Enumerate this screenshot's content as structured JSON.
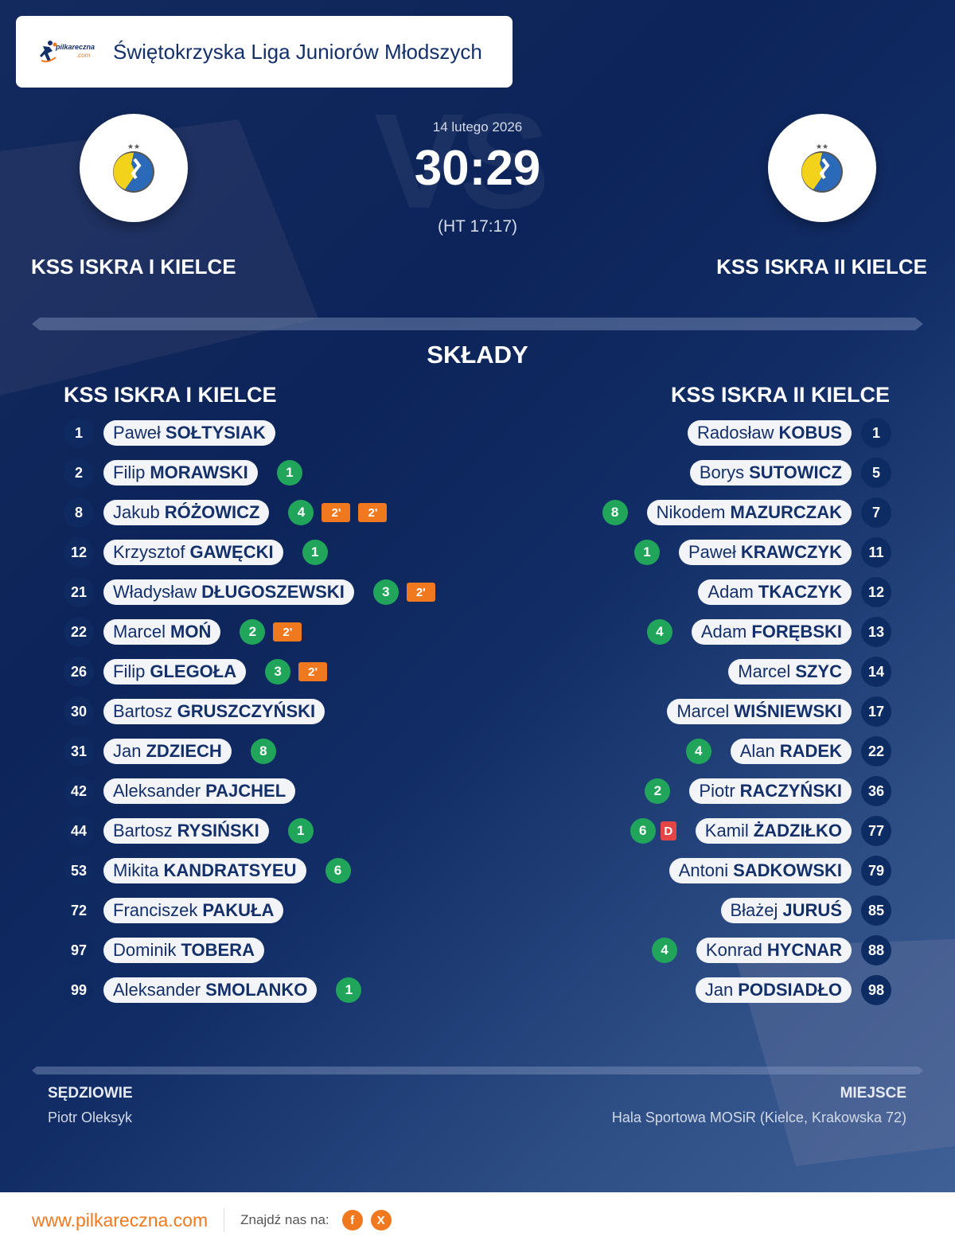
{
  "header": {
    "brand_name": "pilkareczna",
    "brand_suffix": ".com",
    "league_title": "Świętokrzyska Liga Juniorów Młodszych"
  },
  "match": {
    "date": "14 lutego 2026",
    "score": "30:29",
    "half_time": "(HT 17:17)",
    "vs_watermark": "VS",
    "home_team": "KSS ISKRA I KIELCE",
    "away_team": "KSS ISKRA II KIELCE"
  },
  "lineups": {
    "title": "SKŁADY",
    "home_team": "KSS ISKRA I KIELCE",
    "away_team": "KSS ISKRA II KIELCE",
    "home": [
      {
        "number": "1",
        "first": "Paweł",
        "last": "SOŁTYSIAK",
        "goals": null,
        "penalties": []
      },
      {
        "number": "2",
        "first": "Filip",
        "last": "MORAWSKI",
        "goals": "1",
        "penalties": []
      },
      {
        "number": "8",
        "first": "Jakub",
        "last": "RÓŻOWICZ",
        "goals": "4",
        "penalties": [
          "2'",
          "2'"
        ]
      },
      {
        "number": "12",
        "first": "Krzysztof",
        "last": "GAWĘCKI",
        "goals": "1",
        "penalties": []
      },
      {
        "number": "21",
        "first": "Władysław",
        "last": "DŁUGOSZEWSKI",
        "goals": "3",
        "penalties": [
          "2'"
        ]
      },
      {
        "number": "22",
        "first": "Marcel",
        "last": "MOŃ",
        "goals": "2",
        "penalties": [
          "2'"
        ]
      },
      {
        "number": "26",
        "first": "Filip",
        "last": "GLEGOŁA",
        "goals": "3",
        "penalties": [
          "2'"
        ]
      },
      {
        "number": "30",
        "first": "Bartosz",
        "last": "GRUSZCZYŃSKI",
        "goals": null,
        "penalties": []
      },
      {
        "number": "31",
        "first": "Jan",
        "last": "ZDZIECH",
        "goals": "8",
        "penalties": []
      },
      {
        "number": "42",
        "first": "Aleksander",
        "last": "PAJCHEL",
        "goals": null,
        "penalties": []
      },
      {
        "number": "44",
        "first": "Bartosz",
        "last": "RYSIŃSKI",
        "goals": "1",
        "penalties": []
      },
      {
        "number": "53",
        "first": "Mikita",
        "last": "KANDRATSYEU",
        "goals": "6",
        "penalties": []
      },
      {
        "number": "72",
        "first": "Franciszek",
        "last": "PAKUŁA",
        "goals": null,
        "penalties": []
      },
      {
        "number": "97",
        "first": "Dominik",
        "last": "TOBERA",
        "goals": null,
        "penalties": []
      },
      {
        "number": "99",
        "first": "Aleksander",
        "last": "SMOLANKO",
        "goals": "1",
        "penalties": []
      }
    ],
    "away": [
      {
        "number": "1",
        "first": "Radosław",
        "last": "KOBUS",
        "goals": null,
        "penalties": []
      },
      {
        "number": "5",
        "first": "Borys",
        "last": "SUTOWICZ",
        "goals": null,
        "penalties": []
      },
      {
        "number": "7",
        "first": "Nikodem",
        "last": "MAZURCZAK",
        "goals": "8",
        "penalties": []
      },
      {
        "number": "11",
        "first": "Paweł",
        "last": "KRAWCZYK",
        "goals": "1",
        "penalties": []
      },
      {
        "number": "12",
        "first": "Adam",
        "last": "TKACZYK",
        "goals": null,
        "penalties": []
      },
      {
        "number": "13",
        "first": "Adam",
        "last": "FORĘBSKI",
        "goals": "4",
        "penalties": []
      },
      {
        "number": "14",
        "first": "Marcel",
        "last": "SZYC",
        "goals": null,
        "penalties": []
      },
      {
        "number": "17",
        "first": "Marcel",
        "last": "WIŚNIEWSKI",
        "goals": null,
        "penalties": []
      },
      {
        "number": "22",
        "first": "Alan",
        "last": "RADEK",
        "goals": "4",
        "penalties": []
      },
      {
        "number": "36",
        "first": "Piotr",
        "last": "RACZYŃSKI",
        "goals": "2",
        "penalties": []
      },
      {
        "number": "77",
        "first": "Kamil",
        "last": "ŻADZIŁKO",
        "goals": "6",
        "penalties": [
          "D"
        ]
      },
      {
        "number": "79",
        "first": "Antoni",
        "last": "SADKOWSKI",
        "goals": null,
        "penalties": []
      },
      {
        "number": "85",
        "first": "Błażej",
        "last": "JURUŚ",
        "goals": null,
        "penalties": []
      },
      {
        "number": "88",
        "first": "Konrad",
        "last": "HYCNAR",
        "goals": "4",
        "penalties": []
      },
      {
        "number": "98",
        "first": "Jan",
        "last": "PODSIADŁO",
        "goals": null,
        "penalties": []
      }
    ]
  },
  "info": {
    "referees_label": "SĘDZIOWIE",
    "referees_value": "Piotr Oleksyk",
    "venue_label": "MIEJSCE",
    "venue_value": "Hala Sportowa MOSiR (Kielce, Krakowska 72)"
  },
  "footer": {
    "website": "www.pilkareczna.com",
    "find_us": "Znajdź nas na:",
    "social": [
      {
        "icon": "facebook-icon",
        "glyph": "f"
      },
      {
        "icon": "x-icon",
        "glyph": "X"
      }
    ]
  },
  "colors": {
    "navy": "#0c2459",
    "goal_green": "#21a55a",
    "penalty_orange": "#f07920",
    "disqualification_red": "#e64545",
    "pill_bg": "#f2f4f8",
    "brand_orange": "#f07920"
  }
}
